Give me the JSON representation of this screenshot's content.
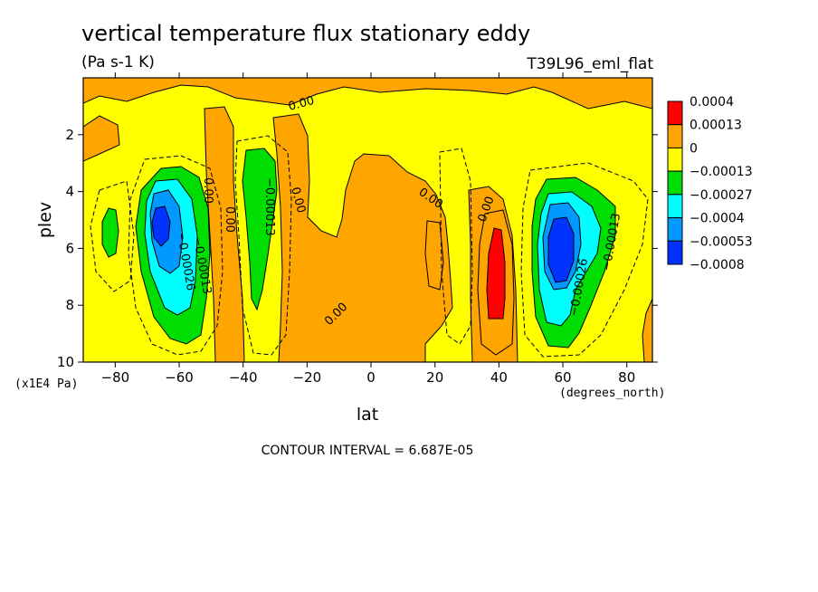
{
  "chart_data": {
    "type": "heatmap",
    "title": "vertical temperature flux stationary eddy",
    "units": "(Pa s-1 K)",
    "run_label": "T39L96_eml_flat",
    "xlabel": "lat",
    "ylabel": "plev",
    "x_units": "(degrees_north)",
    "y_units": "(x1E4 Pa)",
    "xlim": [
      -90,
      88
    ],
    "ylim": [
      0,
      10
    ],
    "y_inverted": true,
    "x_ticks": [
      -80,
      -60,
      -40,
      -20,
      0,
      20,
      40,
      60,
      80
    ],
    "y_ticks": [
      2,
      4,
      6,
      8,
      10
    ],
    "colorbar": {
      "labels": [
        "0.0004",
        "0.00013",
        "0",
        "−0.00013",
        "−0.00027",
        "−0.0004",
        "−0.00053",
        "−0.0008"
      ],
      "colors": [
        "#ff0000",
        "#ffa500",
        "#ffff00",
        "#00dd00",
        "#00ffff",
        "#0099ff",
        "#0033ff"
      ]
    },
    "colors": {
      "orange": "#ffa500",
      "yellow": "#ffff00",
      "green": "#00dd00",
      "cyan": "#00ffff",
      "lightblue": "#0099ff",
      "blue": "#0033ff",
      "red": "#ff0000"
    },
    "contour_labels": [
      "0.00",
      "0.00",
      "0.00",
      "0.00",
      "0.00",
      "0.00",
      "0.00",
      "−0.00013",
      "−0.00013",
      "−0.00026",
      "−0.00013",
      "−0.00026"
    ],
    "footer": "CONTOUR INTERVAL = 6.687E-05"
  }
}
